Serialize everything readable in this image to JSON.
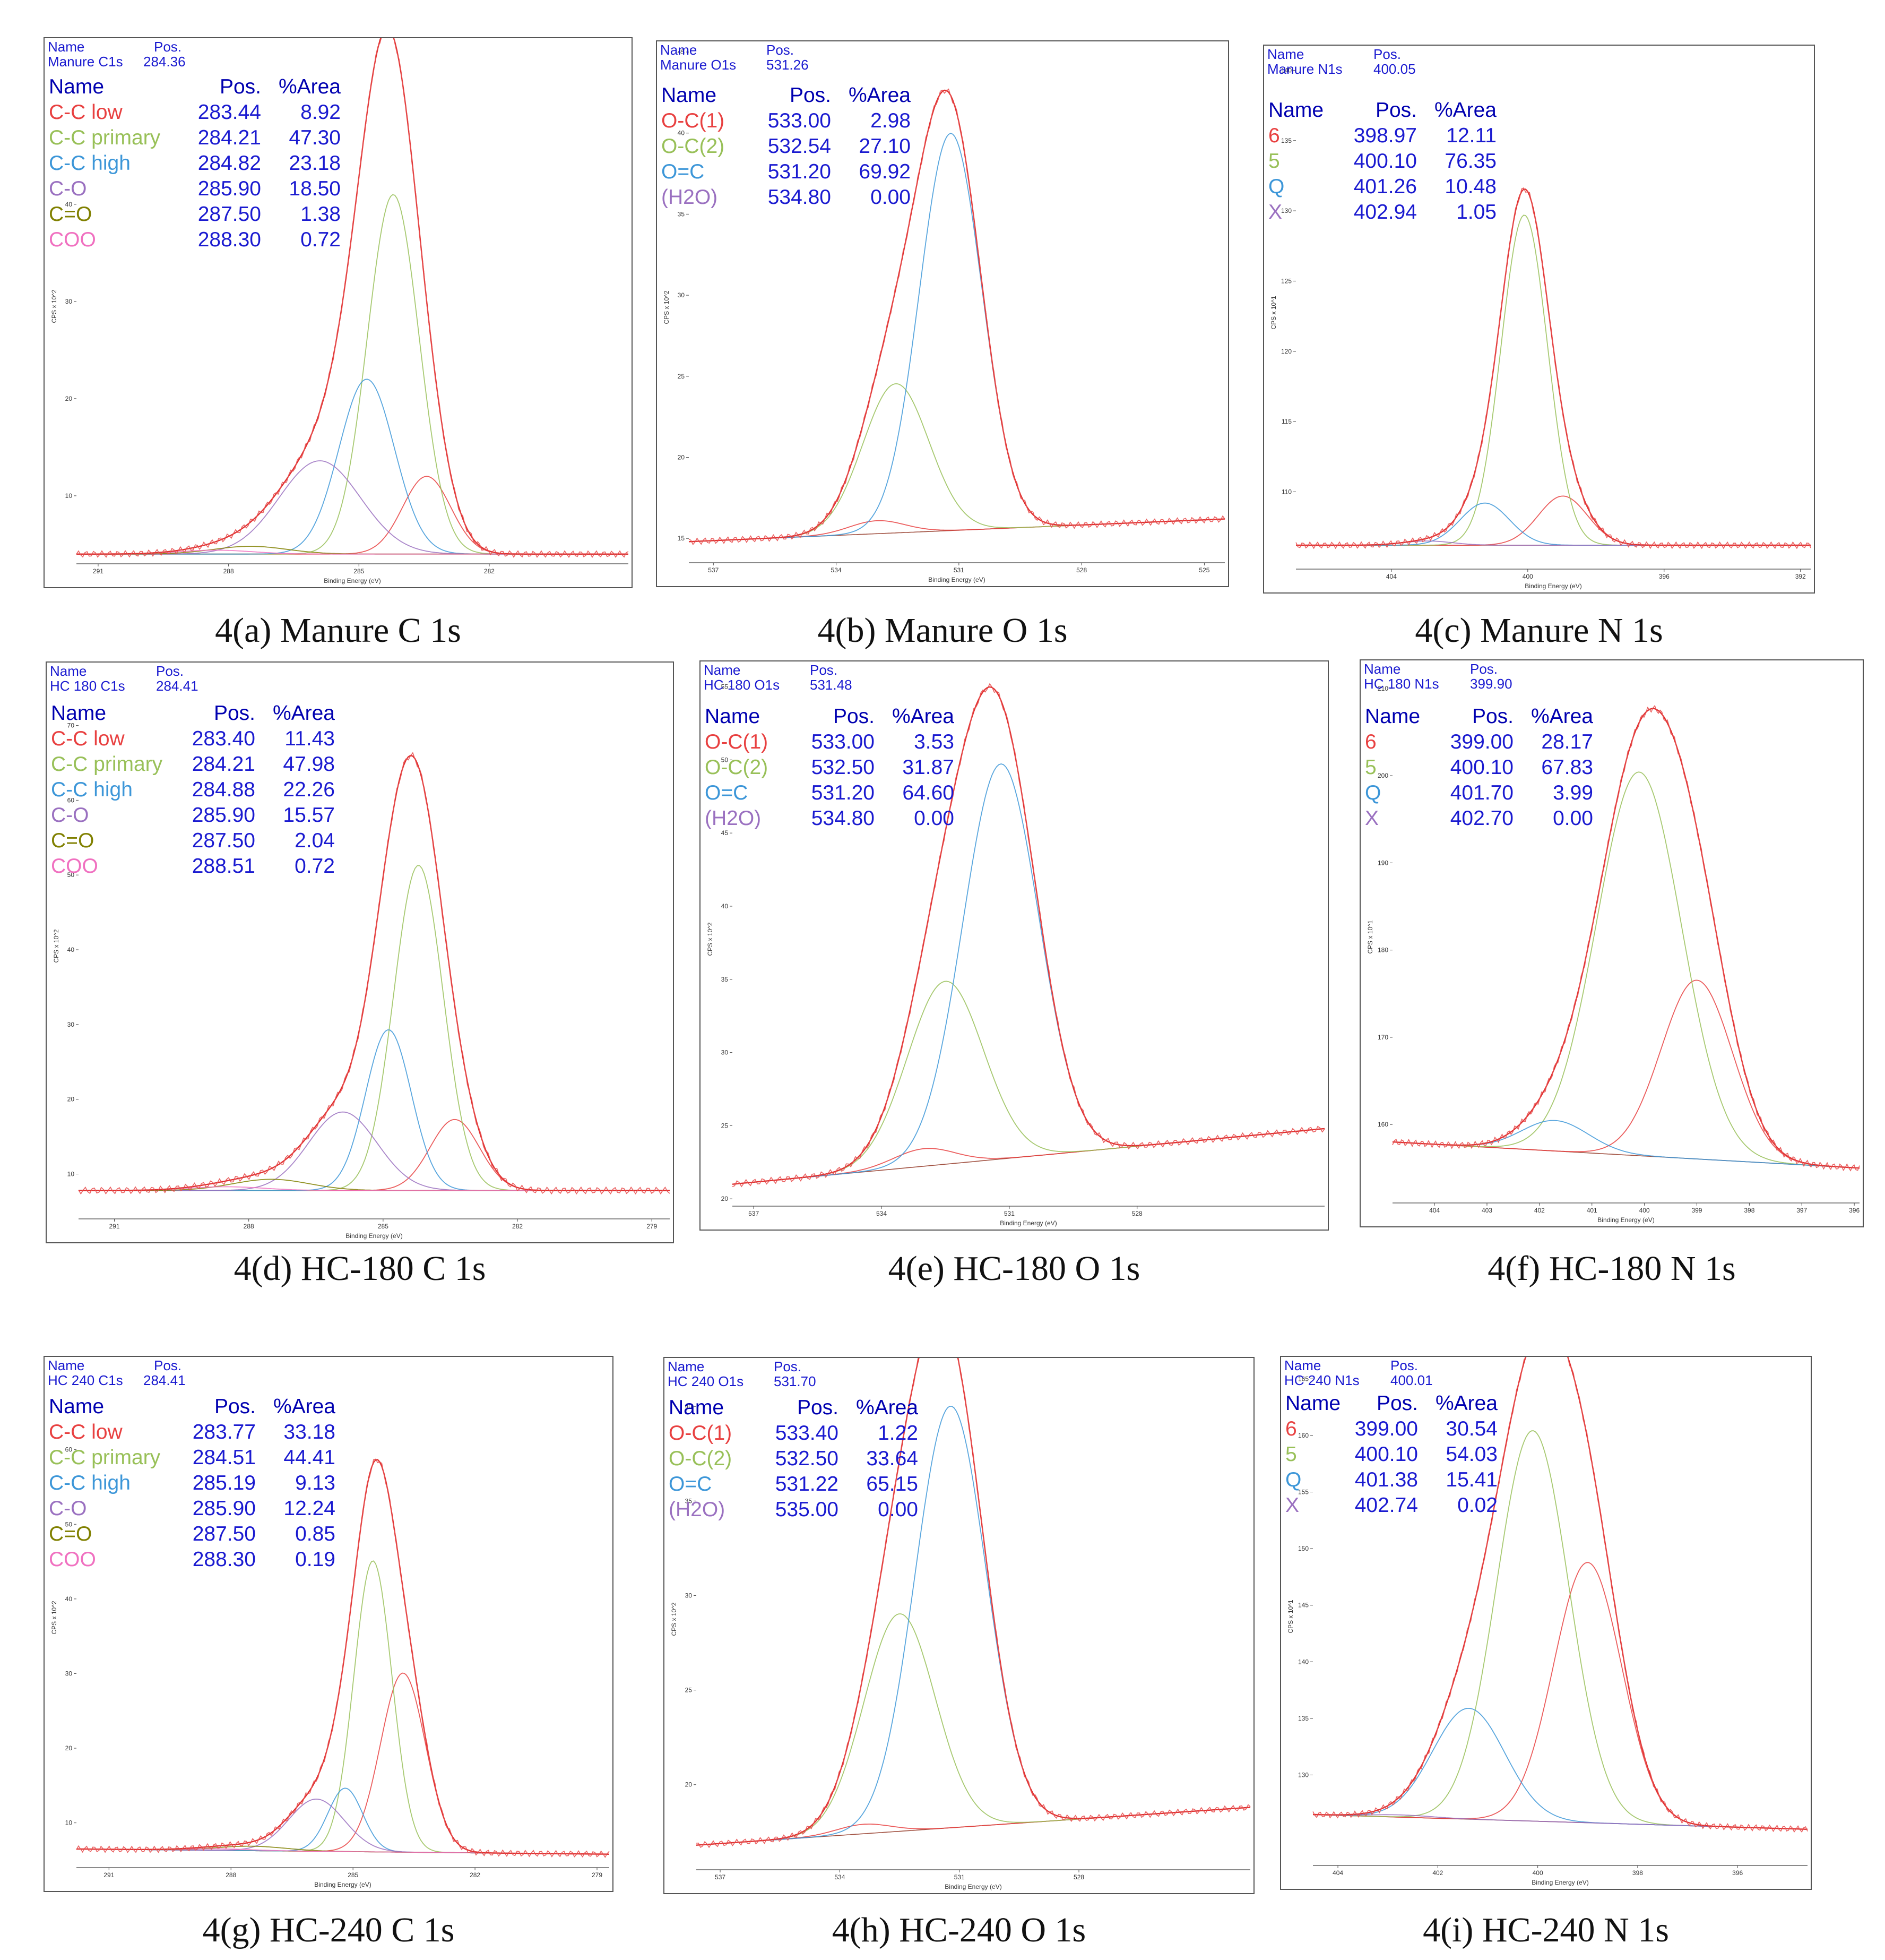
{
  "chart_data": [
    {
      "type": "line",
      "caption": "4(a) Manure C 1s",
      "header": {
        "name_label": "Name",
        "pos_label": "Pos.",
        "name": "Manure C1s",
        "pos": "284.36"
      },
      "table_header": {
        "name": "Name",
        "pos": "Pos.",
        "area": "%Area"
      },
      "components": [
        {
          "name": "C-C low",
          "pos": "283.44",
          "area": "8.92",
          "color": "#e84040",
          "center": 283.44,
          "height": 8,
          "fwhm": 1.3
        },
        {
          "name": "C-C primary",
          "pos": "284.21",
          "area": "47.30",
          "color": "#98c058",
          "center": 284.21,
          "height": 37,
          "fwhm": 1.4
        },
        {
          "name": "C-C high",
          "pos": "284.82",
          "area": "23.18",
          "color": "#3c96d8",
          "center": 284.82,
          "height": 18,
          "fwhm": 1.5
        },
        {
          "name": "C-O",
          "pos": "285.90",
          "area": "18.50",
          "color": "#9a70c0",
          "center": 285.9,
          "height": 9.6,
          "fwhm": 2.2
        },
        {
          "name": "C=O",
          "pos": "287.50",
          "area": "1.38",
          "color": "#808000",
          "center": 287.5,
          "height": 0.8,
          "fwhm": 2.0
        },
        {
          "name": "COO",
          "pos": "288.30",
          "area": "0.72",
          "color": "#f070c0",
          "center": 288.3,
          "height": 0.4,
          "fwhm": 2.0
        }
      ],
      "x_range": [
        291.5,
        278.8
      ],
      "x_ticks": [
        291,
        288,
        285,
        282
      ],
      "y_range": [
        3,
        56
      ],
      "y_ticks": [
        10,
        20,
        30,
        40
      ],
      "baseline": [
        4.0,
        4.0
      ],
      "xlabel": "Binding Energy (eV)",
      "ylabel": "CPS x 10^2"
    },
    {
      "type": "line",
      "caption": "4(b) Manure O 1s",
      "header": {
        "name_label": "Name",
        "pos_label": "Pos.",
        "name": "Manure O1s",
        "pos": "531.26"
      },
      "table_header": {
        "name": "Name",
        "pos": "Pos.",
        "area": "%Area"
      },
      "components": [
        {
          "name": "O-C(1)",
          "pos": "533.00",
          "area": "2.98",
          "color": "#e84040",
          "center": 533.0,
          "height": 0.8,
          "fwhm": 1.6
        },
        {
          "name": "O-C(2)",
          "pos": "532.54",
          "area": "27.10",
          "color": "#98c058",
          "center": 532.54,
          "height": 9.2,
          "fwhm": 1.9
        },
        {
          "name": "O=C",
          "pos": "531.20",
          "area": "69.92",
          "color": "#3c96d8",
          "center": 531.2,
          "height": 24.5,
          "fwhm": 1.8
        },
        {
          "name": "(H2O)",
          "pos": "534.80",
          "area": "0.00",
          "color": "#9a70c0",
          "center": 534.8,
          "height": 0.0,
          "fwhm": 1.5
        }
      ],
      "x_range": [
        537.6,
        524.5
      ],
      "x_ticks": [
        537,
        534,
        531,
        528,
        525
      ],
      "y_range": [
        13.5,
        45
      ],
      "y_ticks": [
        15,
        20,
        25,
        30,
        35,
        40,
        45
      ],
      "baseline": [
        14.8,
        16.2
      ],
      "xlabel": "Binding Energy (eV)",
      "ylabel": "CPS x 10^2"
    },
    {
      "type": "line",
      "caption": "4(c) Manure N 1s",
      "header": {
        "name_label": "Name",
        "pos_label": "Pos.",
        "name": "Manure N1s",
        "pos": "400.05"
      },
      "table_header": {
        "name": "Name",
        "pos": "Pos.",
        "area": "%Area"
      },
      "components": [
        {
          "name": "6",
          "pos": "398.97",
          "area": "12.11",
          "color": "#e84040",
          "center": 398.97,
          "height": 3.5,
          "fwhm": 1.7
        },
        {
          "name": "5",
          "pos": "400.10",
          "area": "76.35",
          "color": "#98c058",
          "center": 400.1,
          "height": 23.5,
          "fwhm": 1.6
        },
        {
          "name": "Q",
          "pos": "401.26",
          "area": "10.48",
          "color": "#3c96d8",
          "center": 401.26,
          "height": 3.0,
          "fwhm": 1.7
        },
        {
          "name": "X",
          "pos": "402.94",
          "area": "1.05",
          "color": "#9a70c0",
          "center": 402.94,
          "height": 0.3,
          "fwhm": 1.7
        }
      ],
      "x_range": [
        406.8,
        391.7
      ],
      "x_ticks": [
        404,
        400,
        396,
        392
      ],
      "y_range": [
        104.5,
        141
      ],
      "y_ticks": [
        110,
        115,
        120,
        125,
        130,
        135,
        140
      ],
      "baseline": [
        106.2,
        106.2
      ],
      "xlabel": "Binding Energy (eV)",
      "ylabel": "CPS x 10^1"
    },
    {
      "type": "line",
      "caption": "4(d) HC-180 C 1s",
      "header": {
        "name_label": "Name",
        "pos_label": "Pos.",
        "name": "HC 180 C1s",
        "pos": "284.41"
      },
      "table_header": {
        "name": "Name",
        "pos": "Pos.",
        "area": "%Area"
      },
      "components": [
        {
          "name": "C-C low",
          "pos": "283.40",
          "area": "11.43",
          "color": "#e84040",
          "center": 283.4,
          "height": 9.5,
          "fwhm": 1.3
        },
        {
          "name": "C-C primary",
          "pos": "284.21",
          "area": "47.98",
          "color": "#98c058",
          "center": 284.21,
          "height": 43.5,
          "fwhm": 1.3
        },
        {
          "name": "C-C high",
          "pos": "284.88",
          "area": "22.26",
          "color": "#3c96d8",
          "center": 284.88,
          "height": 21.5,
          "fwhm": 1.2
        },
        {
          "name": "C-O",
          "pos": "285.90",
          "area": "15.57",
          "color": "#9a70c0",
          "center": 285.9,
          "height": 10.5,
          "fwhm": 1.8
        },
        {
          "name": "C=O",
          "pos": "287.50",
          "area": "2.04",
          "color": "#808000",
          "center": 287.5,
          "height": 1.5,
          "fwhm": 2.0
        },
        {
          "name": "COO",
          "pos": "288.51",
          "area": "0.72",
          "color": "#f070c0",
          "center": 288.51,
          "height": 0.5,
          "fwhm": 2.0
        }
      ],
      "x_range": [
        291.8,
        278.6
      ],
      "x_ticks": [
        291,
        288,
        285,
        282,
        279
      ],
      "y_range": [
        4,
        77
      ],
      "y_ticks": [
        10,
        20,
        30,
        40,
        50,
        60,
        70
      ],
      "baseline": [
        7.8,
        7.8
      ],
      "xlabel": "Binding Energy (eV)",
      "ylabel": "CPS x 10^2"
    },
    {
      "type": "line",
      "caption": "4(e) HC-180 O 1s",
      "header": {
        "name_label": "Name",
        "pos_label": "Pos.",
        "name": "HC 180 O1s",
        "pos": "531.48"
      },
      "table_header": {
        "name": "Name",
        "pos": "Pos.",
        "area": "%Area"
      },
      "components": [
        {
          "name": "O-C(1)",
          "pos": "533.00",
          "area": "3.53",
          "color": "#e84040",
          "center": 533.0,
          "height": 1.2,
          "fwhm": 1.7
        },
        {
          "name": "O-C(2)",
          "pos": "532.50",
          "area": "31.87",
          "color": "#98c058",
          "center": 532.5,
          "height": 12.5,
          "fwhm": 2.1
        },
        {
          "name": "O=C",
          "pos": "531.20",
          "area": "64.60",
          "color": "#3c96d8",
          "center": 531.2,
          "height": 27.0,
          "fwhm": 2.1
        },
        {
          "name": "(H2O)",
          "pos": "534.80",
          "area": "0.00",
          "color": "#9a70c0",
          "center": 534.8,
          "height": 0.0,
          "fwhm": 1.5
        }
      ],
      "x_range": [
        537.5,
        523.6
      ],
      "x_ticks": [
        537,
        534,
        531,
        528
      ],
      "y_range": [
        19.5,
        56
      ],
      "y_ticks": [
        20,
        25,
        30,
        35,
        40,
        45,
        50,
        55
      ],
      "baseline": [
        21.0,
        24.8
      ],
      "xlabel": "Binding Energy (eV)",
      "ylabel": "CPS x 10^2"
    },
    {
      "type": "line",
      "caption": "4(f) HC-180 N 1s",
      "header": {
        "name_label": "Name",
        "pos_label": "Pos.",
        "name": "HC 180 N1s",
        "pos": "399.90"
      },
      "table_header": {
        "name": "Name",
        "pos": "Pos.",
        "area": "%Area"
      },
      "components": [
        {
          "name": "6",
          "pos": "399.00",
          "area": "28.17",
          "color": "#e84040",
          "center": 399.0,
          "height": 20.5,
          "fwhm": 1.6
        },
        {
          "name": "5",
          "pos": "400.10",
          "area": "67.83",
          "color": "#98c058",
          "center": 400.1,
          "height": 44.0,
          "fwhm": 1.9
        },
        {
          "name": "Q",
          "pos": "401.70",
          "area": "3.99",
          "color": "#3c96d8",
          "center": 401.7,
          "height": 3.5,
          "fwhm": 1.5
        },
        {
          "name": "X",
          "pos": "402.70",
          "area": "0.00",
          "color": "#9a70c0",
          "center": 402.7,
          "height": 0.0,
          "fwhm": 1.5
        }
      ],
      "x_range": [
        404.8,
        395.9
      ],
      "x_ticks": [
        404,
        403,
        402,
        401,
        400,
        399,
        398,
        397,
        396
      ],
      "y_range": [
        151,
        212
      ],
      "y_ticks": [
        160,
        170,
        180,
        190,
        200,
        210
      ],
      "baseline": [
        158.0,
        155.0
      ],
      "xlabel": "Binding Energy (eV)",
      "ylabel": "CPS x 10^1"
    },
    {
      "type": "line",
      "caption": "4(g) HC-240 C 1s",
      "header": {
        "name_label": "Name",
        "pos_label": "Pos.",
        "name": "HC 240 C1s",
        "pos": "284.41"
      },
      "table_header": {
        "name": "Name",
        "pos": "Pos.",
        "area": "%Area"
      },
      "components": [
        {
          "name": "C-C low",
          "pos": "283.77",
          "area": "33.18",
          "color": "#e84040",
          "center": 283.77,
          "height": 24.0,
          "fwhm": 1.3
        },
        {
          "name": "C-C primary",
          "pos": "284.51",
          "area": "44.41",
          "color": "#98c058",
          "center": 284.51,
          "height": 39.0,
          "fwhm": 1.1
        },
        {
          "name": "C-C high",
          "pos": "285.19",
          "area": "9.13",
          "color": "#3c96d8",
          "center": 285.19,
          "height": 8.5,
          "fwhm": 1.0
        },
        {
          "name": "C-O",
          "pos": "285.90",
          "area": "12.24",
          "color": "#9a70c0",
          "center": 285.9,
          "height": 7.0,
          "fwhm": 1.6
        },
        {
          "name": "C=O",
          "pos": "287.50",
          "area": "0.85",
          "color": "#808000",
          "center": 287.5,
          "height": 0.6,
          "fwhm": 2.0
        },
        {
          "name": "COO",
          "pos": "288.30",
          "area": "0.19",
          "color": "#f070c0",
          "center": 288.3,
          "height": 0.2,
          "fwhm": 2.0
        }
      ],
      "x_range": [
        291.8,
        278.7
      ],
      "x_ticks": [
        291,
        288,
        285,
        282,
        279
      ],
      "y_range": [
        4,
        71
      ],
      "y_ticks": [
        10,
        20,
        30,
        40,
        50,
        60
      ],
      "baseline": [
        6.5,
        5.8
      ],
      "xlabel": "Binding Energy (eV)",
      "ylabel": "CPS x 10^2"
    },
    {
      "type": "line",
      "caption": "4(h) HC-240 O 1s",
      "header": {
        "name_label": "Name",
        "pos_label": "Pos.",
        "name": "HC 240 O1s",
        "pos": "531.70"
      },
      "table_header": {
        "name": "Name",
        "pos": "Pos.",
        "area": "%Area"
      },
      "components": [
        {
          "name": "O-C(1)",
          "pos": "533.40",
          "area": "1.22",
          "color": "#e84040",
          "center": 533.4,
          "height": 0.5,
          "fwhm": 1.6
        },
        {
          "name": "O-C(2)",
          "pos": "532.50",
          "area": "33.64",
          "color": "#98c058",
          "center": 532.5,
          "height": 11.5,
          "fwhm": 2.1
        },
        {
          "name": "O=C",
          "pos": "531.22",
          "area": "65.15",
          "color": "#3c96d8",
          "center": 531.22,
          "height": 22.3,
          "fwhm": 2.1
        },
        {
          "name": "(H2O)",
          "pos": "535.00",
          "area": "0.00",
          "color": "#9a70c0",
          "center": 535.0,
          "height": 0.0,
          "fwhm": 1.5
        }
      ],
      "x_range": [
        537.6,
        523.7
      ],
      "x_ticks": [
        537,
        534,
        531,
        528
      ],
      "y_range": [
        15.5,
        42
      ],
      "y_ticks": [
        20,
        25,
        30,
        35,
        40
      ],
      "baseline": [
        16.8,
        18.8
      ],
      "xlabel": "Binding Energy (eV)",
      "ylabel": "CPS x 10^2"
    },
    {
      "type": "line",
      "caption": "4(i) HC-240 N 1s",
      "header": {
        "name_label": "Name",
        "pos_label": "Pos.",
        "name": "HC 240 N1s",
        "pos": "400.01"
      },
      "table_header": {
        "name": "Name",
        "pos": "Pos.",
        "area": "%Area"
      },
      "components": [
        {
          "name": "6",
          "pos": "399.00",
          "area": "30.54",
          "color": "#e84040",
          "center": 399.0,
          "height": 23.0,
          "fwhm": 1.6
        },
        {
          "name": "5",
          "pos": "400.10",
          "area": "54.03",
          "color": "#98c058",
          "center": 400.1,
          "height": 34.5,
          "fwhm": 1.7
        },
        {
          "name": "Q",
          "pos": "401.38",
          "area": "15.41",
          "color": "#3c96d8",
          "center": 401.38,
          "height": 9.8,
          "fwhm": 1.7
        },
        {
          "name": "X",
          "pos": "402.74",
          "area": "0.02",
          "color": "#9a70c0",
          "center": 402.74,
          "height": 0.2,
          "fwhm": 1.5
        }
      ],
      "x_range": [
        404.5,
        394.6
      ],
      "x_ticks": [
        404,
        402,
        400,
        398,
        396
      ],
      "y_range": [
        122,
        166
      ],
      "y_ticks": [
        130,
        135,
        140,
        145,
        150,
        155,
        160,
        165
      ],
      "baseline": [
        126.5,
        125.2
      ],
      "xlabel": "Binding Energy (eV)",
      "ylabel": "CPS x 10^1"
    }
  ]
}
